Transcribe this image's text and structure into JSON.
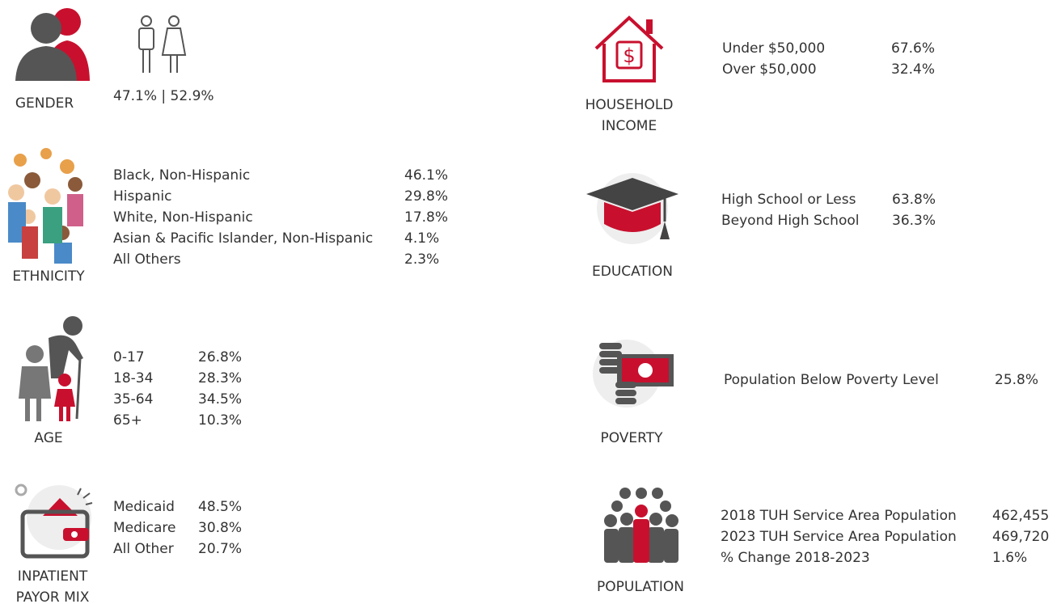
{
  "sections": [
    {
      "label": "GENDER",
      "rows": [
        {
          "text": "47.1% | 52.9%"
        }
      ]
    },
    {
      "label": "ETHNICITY",
      "rows": [
        {
          "text": "Black, Non-Hispanic",
          "value": "46.1%"
        },
        {
          "text": "Hispanic",
          "value": "29.8%"
        },
        {
          "text": "White, Non-Hispanic",
          "value": "17.8%"
        },
        {
          "text": "Asian & Pacific Islander, Non-Hispanic",
          "value": "4.1%"
        },
        {
          "text": "All Others",
          "value": "2.3%"
        }
      ]
    },
    {
      "label": "AGE",
      "rows": [
        {
          "text": "0-17",
          "value": "26.8%"
        },
        {
          "text": "18-34",
          "value": "28.3%"
        },
        {
          "text": "35-64",
          "value": "34.5%"
        },
        {
          "text": "65+",
          "value": "10.3%"
        }
      ]
    },
    {
      "label": "INPATIENT PAYOR MIX",
      "rows": [
        {
          "text": "Medicaid",
          "value": "48.5%"
        },
        {
          "text": "Medicare",
          "value": "30.8%"
        },
        {
          "text": "All Other",
          "value": "20.7%"
        }
      ]
    },
    {
      "label": "HOUSEHOLD INCOME",
      "rows": [
        {
          "text": "Under $50,000",
          "value": "67.6%"
        },
        {
          "text": "Over $50,000",
          "value": "32.4%"
        }
      ]
    },
    {
      "label": "EDUCATION",
      "rows": [
        {
          "text": "High School or Less",
          "value": "63.8%"
        },
        {
          "text": "Beyond High School",
          "value": "36.3%"
        }
      ]
    },
    {
      "label": "POVERTY",
      "rows": [
        {
          "text": "Population Below Poverty Level",
          "value": "25.8%"
        }
      ]
    },
    {
      "label": "POPULATION",
      "rows": [
        {
          "text": "2018 TUH Service Area Population",
          "value": "462,455"
        },
        {
          "text": "2023 TUH Service Area Population",
          "value": "469,720"
        },
        {
          "text": "% Change 2018-2023",
          "value": "1.6%"
        }
      ]
    }
  ]
}
